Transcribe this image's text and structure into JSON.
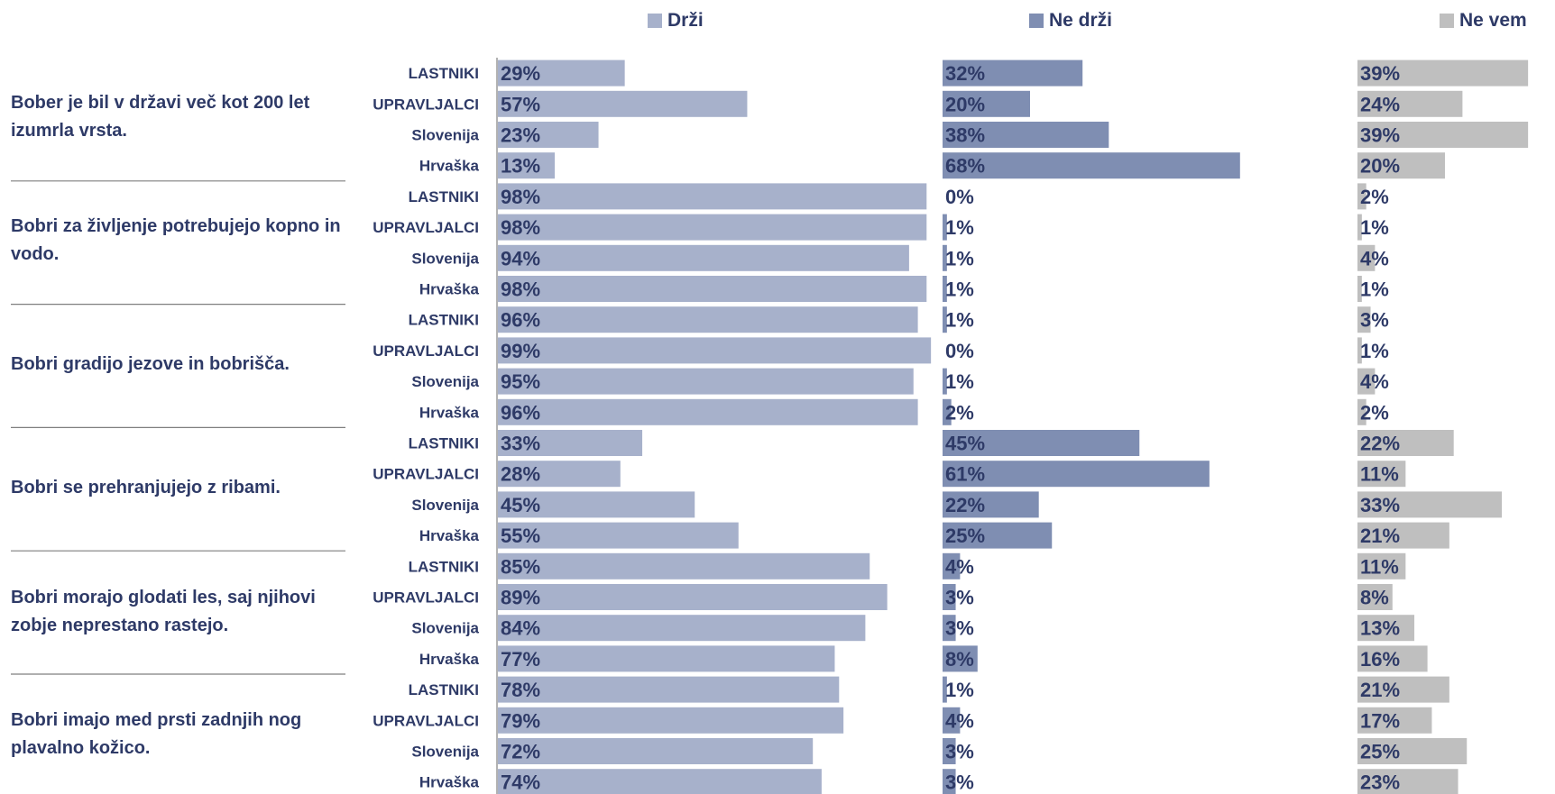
{
  "legend": {
    "drzi": "Drži",
    "ne_drzi": "Ne drži",
    "ne_vem": "Ne vem"
  },
  "colors": {
    "drzi": "#a7b1cb",
    "ne_drzi": "#7f8eb2",
    "ne_vem": "#bfbfbf",
    "text": "#2e3a67",
    "separator": "#7f7f7f"
  },
  "chart_data": {
    "type": "bar",
    "orientation": "horizontal",
    "stacked": false,
    "series": [
      {
        "name": "Drži",
        "values": [
          29,
          57,
          23,
          13,
          98,
          98,
          94,
          98,
          96,
          99,
          95,
          96,
          33,
          28,
          45,
          55,
          85,
          89,
          84,
          77,
          78,
          79,
          72,
          74
        ]
      },
      {
        "name": "Ne drži",
        "values": [
          32,
          20,
          38,
          68,
          0,
          1,
          1,
          1,
          1,
          0,
          1,
          2,
          45,
          61,
          22,
          25,
          4,
          3,
          3,
          8,
          1,
          4,
          3,
          3
        ]
      },
      {
        "name": "Ne vem",
        "values": [
          39,
          24,
          39,
          20,
          2,
          1,
          4,
          1,
          3,
          1,
          4,
          2,
          22,
          11,
          33,
          21,
          11,
          8,
          13,
          16,
          21,
          17,
          25,
          23
        ]
      }
    ],
    "groups": [
      "LASTNIKI",
      "UPRAVLJALCI",
      "Slovenija",
      "Hrvaška"
    ],
    "questions": [
      "Bober je bil v državi več kot 200 let izumrla vrsta.",
      "Bobri za življenje potrebujejo kopno in vodo.",
      "Bobri gradijo jezove in bobrišča.",
      "Bobri se prehranjujejo z ribami.",
      "Bobri morajo glodati les, saj njihovi zobje neprestano rastejo.",
      "Bobri imajo med prsti zadnjih nog plavalno kožico."
    ],
    "value_suffix": "%",
    "xlim": [
      0,
      100
    ],
    "legend_position": "top"
  }
}
